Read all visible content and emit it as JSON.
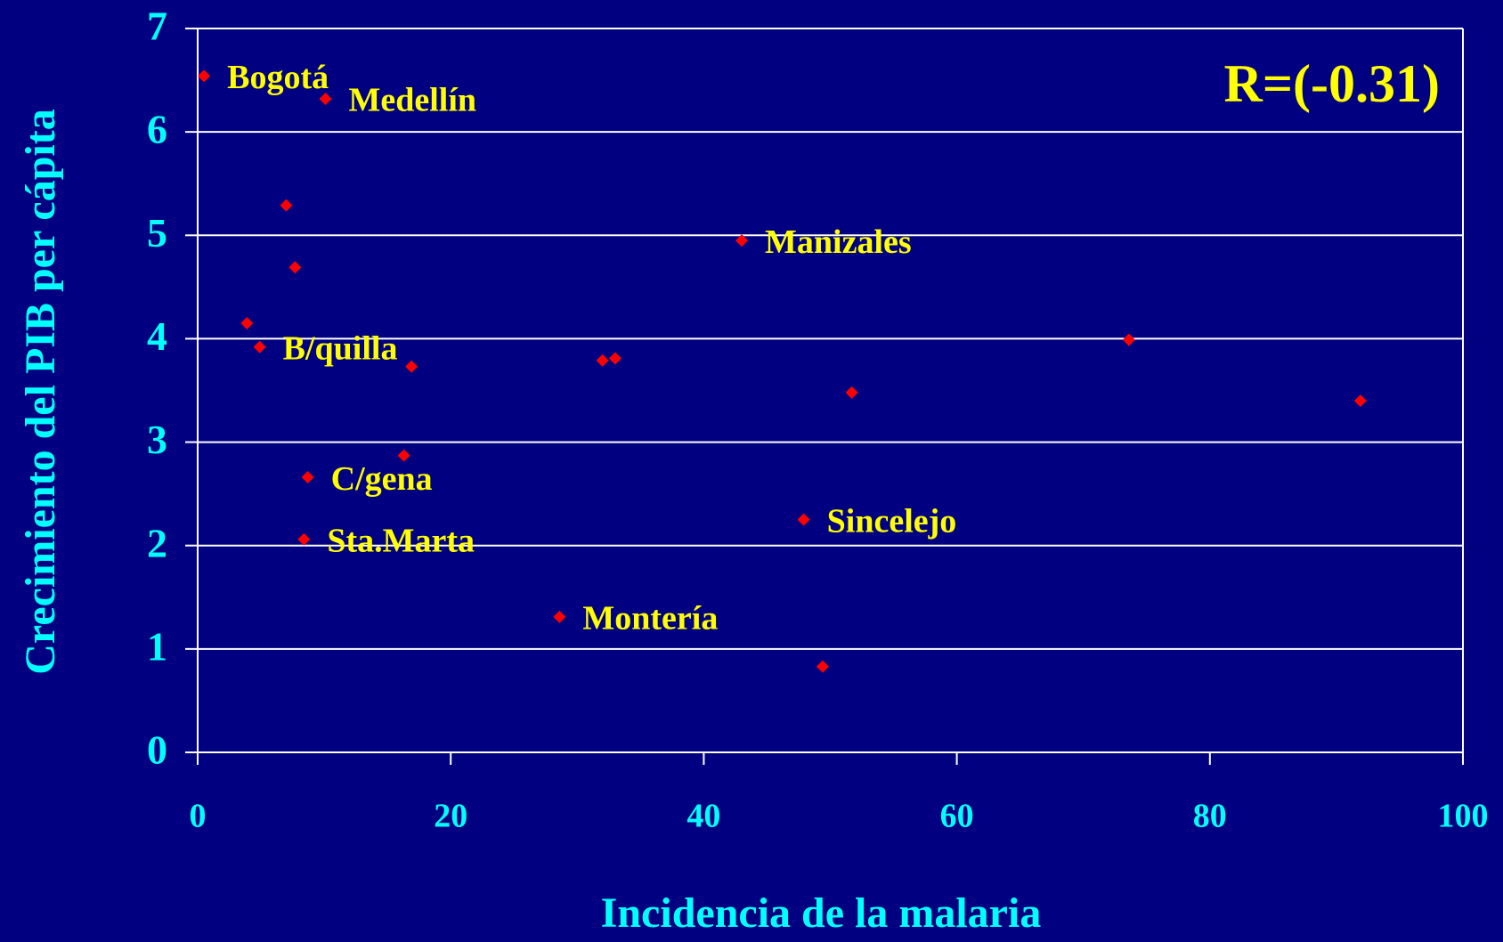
{
  "chart_data": {
    "type": "scatter",
    "annotation": "R=(-0.31)",
    "x_label": "Incidencia de la malaria",
    "y_label": "Crecimiento del PIB per cápita",
    "color": "#ff0000",
    "x": [
      0.5,
      10.1,
      7.0,
      7.7,
      3.9,
      4.9,
      16.9,
      32.0,
      33.0,
      43.0,
      51.7,
      73.6,
      91.9,
      16.3,
      8.7,
      8.4,
      47.9,
      28.6,
      49.4
    ],
    "values": [
      6.54,
      6.32,
      5.29,
      4.69,
      4.15,
      3.92,
      3.73,
      3.79,
      3.81,
      4.95,
      3.48,
      3.99,
      3.4,
      2.87,
      2.66,
      2.06,
      2.25,
      1.31,
      0.83
    ],
    "labels": [
      "Bogotá",
      "Medellín",
      null,
      null,
      null,
      "B/quilla",
      null,
      null,
      null,
      "Manizales",
      null,
      null,
      null,
      null,
      "C/gena",
      "Sta.Marta",
      "Sincelejo",
      "Montería",
      null
    ],
    "xlim": [
      0,
      100
    ],
    "xticks": [
      0,
      20,
      40,
      60,
      80,
      100
    ],
    "ylim": [
      0,
      7
    ],
    "yticks": [
      0,
      1,
      2,
      3,
      4,
      5,
      6,
      7
    ],
    "grid": true
  }
}
